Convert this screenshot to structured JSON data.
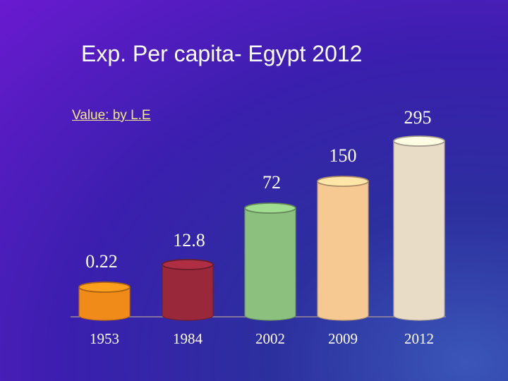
{
  "slide": {
    "title": "Exp. Per capita- Egypt 2012",
    "subtitle": "Value: by L.E"
  },
  "chart_data": {
    "type": "bar",
    "title": "Exp. Per capita- Egypt 2012",
    "subtitle": "Value: by L.E",
    "categories": [
      "1953",
      "1984",
      "2002",
      "2009",
      "2012"
    ],
    "values": [
      0.22,
      12.8,
      72,
      150,
      295
    ],
    "value_labels": [
      "0.22",
      "12.8",
      "72",
      "150",
      "295"
    ],
    "colors": [
      "#f08a18",
      "#98283a",
      "#8cc07e",
      "#f6c892",
      "#e8dcc6"
    ],
    "style": "cylinder"
  }
}
